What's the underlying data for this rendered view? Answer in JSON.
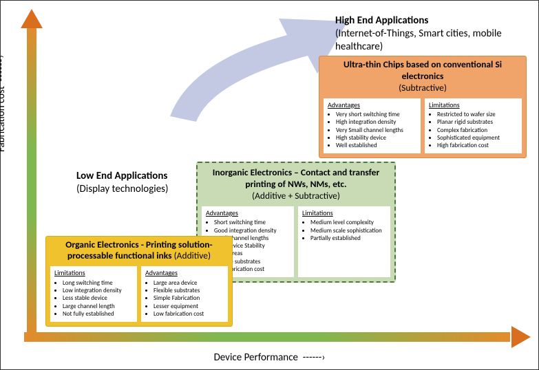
{
  "axes": {
    "y_label": "Fabrication cost",
    "x_label": "Device Performance",
    "arrow_glyph": "------›",
    "gradient_colors": [
      "#e38b2c",
      "#7fb850",
      "#7fb850",
      "#e38b2c"
    ],
    "arrow_head_color": "#d96f1e"
  },
  "trend_arrow": {
    "fill": "#b8c0dd",
    "opacity": 0.85
  },
  "applications": {
    "low_end": {
      "title": "Low End Applications",
      "sub": "(Display technologies)"
    },
    "high_end": {
      "title": "High End Applications",
      "sub": "(Internet-of-Things, Smart cities, mobile healthcare)"
    }
  },
  "categories": {
    "organic": {
      "title_bold": "Organic Electronics - Printing solution-processable functional inks",
      "title_rest": " (Additive)",
      "bg_color": "#f0c22e",
      "border_color": "#d4a920",
      "panels": [
        {
          "heading": "Limitations",
          "items": [
            "Long switching time",
            "Low integration density",
            "Less stable device",
            "Large channel length",
            "Not fully established"
          ]
        },
        {
          "heading": "Advantages",
          "items": [
            "Large area device",
            "Flexible substrates",
            "Simple Fabrication",
            "Lesser equipment",
            "Low fabrication cost"
          ]
        }
      ]
    },
    "inorganic": {
      "title_bold": "Inorganic Electronics – Contact and transfer printing of NWs, NMs, etc.",
      "title_rest": " (Additive + Subtractive)",
      "bg_color": "rgba(156,190,120,0.55)",
      "border_color": "#4a7a3a",
      "panels": [
        {
          "heading": "Advantages",
          "items": [
            "Short switching time",
            "Good integration density",
            "Small channel lengths",
            "High device Stability",
            "Large areas",
            "Flexible substrates",
            "Low fabrication cost"
          ]
        },
        {
          "heading": "Limitations",
          "items": [
            "Medium level complexity",
            "Medium scale sophistication",
            "Partially established"
          ]
        }
      ]
    },
    "ultrathin": {
      "title_bold": "Ultra-thin Chips based on conventional Si electronics",
      "title_rest": " (Subtractive)",
      "bg_color": "#f0a46a",
      "border_color": "#d8873f",
      "panels": [
        {
          "heading": "Advantages",
          "items": [
            "Very short switching time",
            "High integration density",
            "Very Small channel lengths",
            "High stability device",
            "Well established"
          ]
        },
        {
          "heading": "Limitations",
          "items": [
            "Restricted to wafer size",
            "Planar rigid substrates",
            "Complex fabrication",
            "Sophisticated equipment",
            "High fabrication cost"
          ]
        }
      ]
    }
  },
  "typography": {
    "header_fontsize": 13.5,
    "panel_fontsize": 9,
    "axis_fontsize": 15,
    "app_fontsize": 15
  }
}
